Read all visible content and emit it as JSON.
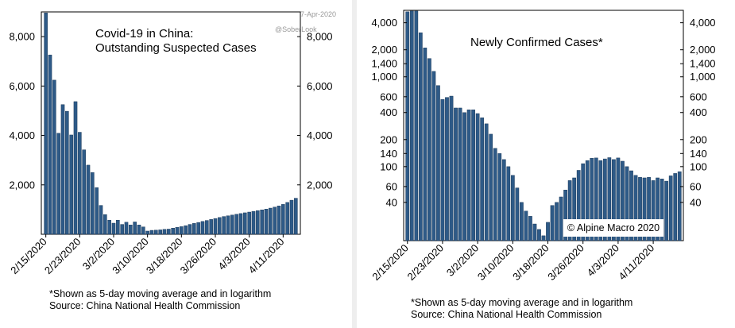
{
  "charts": {
    "left": {
      "title_line1": "Covid-19 in China:",
      "title_line2": "Outstanding Suspected Cases",
      "date_stamp": "7-Apr-2020",
      "watermark": "@SoberLook",
      "footnote": "*Shown as 5-day moving average and in logarithm",
      "source": "Source: China National Health Commission"
    },
    "right": {
      "title": "Newly Confirmed Cases*",
      "credit": "© Alpine Macro 2020",
      "footnote": "*Shown as 5-day moving average and in logarithm",
      "source": "Source: China National Health Commission"
    }
  },
  "chart_data": [
    {
      "type": "bar",
      "title": "Covid-19 in China: Outstanding Suspected Cases",
      "ylim": [
        0,
        9000
      ],
      "yticks": [
        "2,000",
        "4,000",
        "6,000",
        "8,000"
      ],
      "ytick_values": [
        2000,
        4000,
        6000,
        8000
      ],
      "xtick_labels": [
        "2/15/2020",
        "2/23/2020",
        "3/2/2020",
        "3/10/2020",
        "3/18/2020",
        "3/26/2020",
        "4/3/2020",
        "4/11/2020"
      ],
      "xtick_index": [
        0,
        8,
        16,
        24,
        32,
        40,
        48,
        56
      ],
      "bar_color": "#2e5a87",
      "values": [
        8960,
        7260,
        6240,
        4090,
        5250,
        4980,
        4020,
        5370,
        4130,
        3420,
        2800,
        2500,
        1890,
        1170,
        800,
        570,
        450,
        570,
        400,
        490,
        380,
        500,
        380,
        300,
        130,
        160,
        170,
        180,
        200,
        210,
        250,
        280,
        310,
        350,
        400,
        440,
        480,
        520,
        560,
        600,
        640,
        680,
        720,
        750,
        780,
        810,
        840,
        870,
        900,
        930,
        960,
        990,
        1020,
        1060,
        1100,
        1150,
        1210,
        1290,
        1380,
        1460
      ]
    },
    {
      "type": "bar",
      "title": "Newly Confirmed Cases*",
      "log_scale": true,
      "ylim": [
        15,
        5500
      ],
      "yticks": [
        "40",
        "60",
        "100",
        "140",
        "200",
        "400",
        "600",
        "1,000",
        "1,400",
        "2,000",
        "4,000"
      ],
      "ytick_values": [
        40,
        60,
        100,
        140,
        200,
        400,
        600,
        1000,
        1400,
        2000,
        4000
      ],
      "xtick_labels": [
        "2/15/2020",
        "2/23/2020",
        "3/2/2020",
        "3/10/2020",
        "3/18/2020",
        "3/26/2020",
        "4/3/2020",
        "4/11/2020"
      ],
      "xtick_index": [
        0,
        8,
        16,
        24,
        32,
        40,
        48,
        56
      ],
      "bar_color": "#2e5a87",
      "values": [
        5300,
        5400,
        5400,
        3100,
        2100,
        1600,
        1150,
        800,
        560,
        590,
        610,
        450,
        450,
        400,
        430,
        430,
        390,
        350,
        300,
        230,
        160,
        140,
        120,
        100,
        80,
        58,
        40,
        32,
        28,
        23,
        20,
        17,
        24,
        37,
        40,
        46,
        55,
        70,
        75,
        91,
        108,
        117,
        124,
        125,
        117,
        122,
        126,
        120,
        125,
        115,
        100,
        90,
        80,
        76,
        75,
        76,
        70,
        75,
        73,
        69,
        79,
        84,
        88
      ]
    }
  ]
}
